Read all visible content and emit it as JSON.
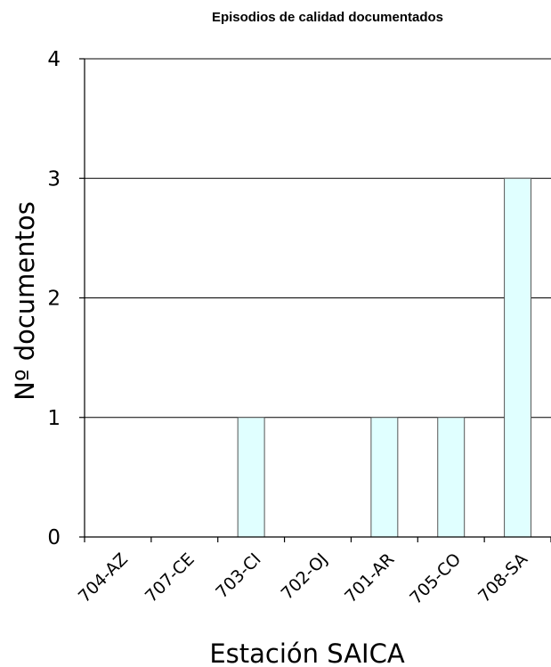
{
  "chart_data": {
    "type": "bar",
    "title": "Episodios de calidad documentados",
    "xlabel": "Estación SAICA",
    "ylabel": "Nº documentos",
    "categories": [
      "704-AZ",
      "707-CE",
      "703-CI",
      "702-OJ",
      "701-AR",
      "705-CO",
      "708-SA"
    ],
    "values": [
      0,
      0,
      1,
      0,
      1,
      1,
      3
    ],
    "ylim": [
      0,
      4
    ],
    "yticks": [
      0,
      1,
      2,
      3,
      4
    ],
    "grid": true,
    "bar_color": "#E0FFFF"
  }
}
